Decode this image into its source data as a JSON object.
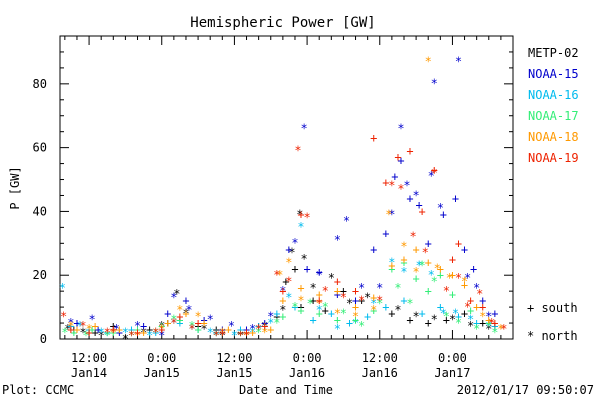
{
  "chart_data": {
    "type": "scatter",
    "title": "Hemispheric Power [GW]",
    "ylabel": "P [GW]",
    "xlabel": "Date and Time",
    "ylim": [
      0,
      95
    ],
    "yticks": [
      0,
      20,
      40,
      60,
      80
    ],
    "yminor_step": 5,
    "x_unit": "hours since 2012-01-14 00:00",
    "xlim": [
      7.2,
      82
    ],
    "xticks": [
      {
        "x": 12,
        "line1": "12:00",
        "line2": "Jan14"
      },
      {
        "x": 24,
        "line1": "0:00",
        "line2": "Jan15"
      },
      {
        "x": 36,
        "line1": "12:00",
        "line2": "Jan15"
      },
      {
        "x": 48,
        "line1": "0:00",
        "line2": "Jan16"
      },
      {
        "x": 60,
        "line1": "12:00",
        "line2": "Jan16"
      },
      {
        "x": 72,
        "line1": "0:00",
        "line2": "Jan17"
      }
    ],
    "xminor_step": 2,
    "legend_position": "right",
    "marker_legend": [
      {
        "glyph": "+",
        "label": "south"
      },
      {
        "glyph": "*",
        "label": "north"
      }
    ],
    "series": [
      {
        "name": "METP-02",
        "color": "#000000",
        "south": [
          [
            9.5,
            3
          ],
          [
            13,
            2
          ],
          [
            16,
            4
          ],
          [
            20,
            2
          ],
          [
            22,
            3
          ],
          [
            25,
            5
          ],
          [
            27,
            6
          ],
          [
            30,
            4
          ],
          [
            33,
            3
          ],
          [
            37,
            2
          ],
          [
            40,
            4
          ],
          [
            43,
            7
          ],
          [
            44.5,
            18
          ],
          [
            46,
            22
          ],
          [
            47,
            10
          ],
          [
            49,
            12
          ],
          [
            51,
            9
          ],
          [
            54,
            15
          ],
          [
            57,
            12
          ],
          [
            62,
            8
          ],
          [
            65,
            6
          ],
          [
            68,
            5
          ],
          [
            71,
            6
          ],
          [
            74,
            8
          ],
          [
            77,
            5
          ],
          [
            79,
            4
          ]
        ],
        "north": [
          [
            8.5,
            4
          ],
          [
            11,
            3
          ],
          [
            14,
            2
          ],
          [
            18,
            1
          ],
          [
            21,
            3
          ],
          [
            24,
            5
          ],
          [
            26.5,
            15
          ],
          [
            28,
            9
          ],
          [
            31,
            4
          ],
          [
            34,
            2
          ],
          [
            38,
            2
          ],
          [
            41,
            5
          ],
          [
            44,
            10
          ],
          [
            45.5,
            28
          ],
          [
            46.8,
            40
          ],
          [
            47.5,
            26
          ],
          [
            49,
            17
          ],
          [
            52,
            20
          ],
          [
            55,
            12
          ],
          [
            58,
            14
          ],
          [
            63,
            10
          ],
          [
            66,
            8
          ],
          [
            69,
            7
          ],
          [
            72,
            7
          ],
          [
            75,
            5
          ],
          [
            78,
            4
          ]
        ]
      },
      {
        "name": "NOAA-15",
        "color": "#0000cc",
        "south": [
          [
            10,
            5
          ],
          [
            13.5,
            3
          ],
          [
            17,
            2
          ],
          [
            21,
            4
          ],
          [
            25,
            8
          ],
          [
            28,
            12
          ],
          [
            31,
            6
          ],
          [
            34,
            3
          ],
          [
            38,
            3
          ],
          [
            41,
            5
          ],
          [
            45,
            28
          ],
          [
            48,
            22
          ],
          [
            50,
            21
          ],
          [
            53,
            14
          ],
          [
            56,
            12
          ],
          [
            59,
            28
          ],
          [
            61,
            33
          ],
          [
            62.5,
            51
          ],
          [
            63.5,
            56
          ],
          [
            65,
            44
          ],
          [
            66.5,
            42
          ],
          [
            68,
            30
          ],
          [
            70.5,
            39
          ],
          [
            72.5,
            44
          ],
          [
            74,
            28
          ],
          [
            75.5,
            22
          ],
          [
            77,
            12
          ],
          [
            79,
            8
          ]
        ],
        "north": [
          [
            9,
            6
          ],
          [
            12.5,
            7
          ],
          [
            16.5,
            4
          ],
          [
            20,
            5
          ],
          [
            24,
            2
          ],
          [
            26,
            14
          ],
          [
            28.5,
            10
          ],
          [
            32,
            7
          ],
          [
            35.5,
            5
          ],
          [
            39,
            4
          ],
          [
            42,
            8
          ],
          [
            44,
            16
          ],
          [
            46,
            31
          ],
          [
            47.5,
            67
          ],
          [
            50,
            21
          ],
          [
            53,
            32
          ],
          [
            54.5,
            38
          ],
          [
            57,
            17
          ],
          [
            60,
            17
          ],
          [
            62,
            40
          ],
          [
            63.5,
            67
          ],
          [
            64.5,
            49
          ],
          [
            66,
            46
          ],
          [
            68.5,
            52
          ],
          [
            69,
            81
          ],
          [
            70,
            42
          ],
          [
            73,
            88
          ],
          [
            74.5,
            20
          ],
          [
            76,
            17
          ],
          [
            78,
            8
          ]
        ]
      },
      {
        "name": "NOAA-16",
        "color": "#00bbee",
        "south": [
          [
            9,
            4
          ],
          [
            12,
            3
          ],
          [
            15,
            2
          ],
          [
            19,
            3
          ],
          [
            23,
            2
          ],
          [
            27,
            5
          ],
          [
            30,
            3
          ],
          [
            33,
            2
          ],
          [
            37,
            3
          ],
          [
            40,
            4
          ],
          [
            43,
            8
          ],
          [
            46,
            10
          ],
          [
            49,
            6
          ],
          [
            52,
            8
          ],
          [
            55,
            5
          ],
          [
            58,
            7
          ],
          [
            61,
            10
          ],
          [
            64,
            12
          ],
          [
            67,
            8
          ],
          [
            70,
            10
          ],
          [
            73,
            7
          ],
          [
            76,
            5
          ],
          [
            79,
            4
          ]
        ],
        "north": [
          [
            7.6,
            17
          ],
          [
            10.5,
            5
          ],
          [
            14,
            3
          ],
          [
            18,
            3
          ],
          [
            22,
            2
          ],
          [
            26,
            6
          ],
          [
            29,
            4
          ],
          [
            32,
            3
          ],
          [
            36,
            2
          ],
          [
            39,
            3
          ],
          [
            42,
            6
          ],
          [
            45,
            14
          ],
          [
            47,
            36
          ],
          [
            50,
            10
          ],
          [
            53,
            4
          ],
          [
            56,
            6
          ],
          [
            59,
            12
          ],
          [
            62,
            25
          ],
          [
            64,
            22
          ],
          [
            66.5,
            24
          ],
          [
            68.5,
            21
          ],
          [
            70.5,
            9
          ],
          [
            72.5,
            9
          ],
          [
            75,
            7
          ],
          [
            78,
            5
          ]
        ]
      },
      {
        "name": "NOAA-17",
        "color": "#33ee77",
        "south": [
          [
            9.5,
            2
          ],
          [
            12.5,
            3
          ],
          [
            16,
            2
          ],
          [
            20,
            3
          ],
          [
            24,
            4
          ],
          [
            27,
            6
          ],
          [
            30,
            3
          ],
          [
            34,
            2
          ],
          [
            38,
            2
          ],
          [
            41,
            4
          ],
          [
            44,
            7
          ],
          [
            47,
            9
          ],
          [
            50,
            8
          ],
          [
            53,
            6
          ],
          [
            56,
            6
          ],
          [
            59,
            9
          ],
          [
            62,
            22
          ],
          [
            64,
            24
          ],
          [
            66,
            19
          ],
          [
            68,
            15
          ],
          [
            70,
            20
          ],
          [
            72,
            14
          ],
          [
            75,
            9
          ],
          [
            78,
            5
          ]
        ],
        "north": [
          [
            8,
            3
          ],
          [
            11.5,
            2
          ],
          [
            15,
            2
          ],
          [
            19,
            2
          ],
          [
            23,
            3
          ],
          [
            26,
            7
          ],
          [
            29,
            5
          ],
          [
            33,
            2
          ],
          [
            37,
            2
          ],
          [
            40,
            3
          ],
          [
            43,
            6
          ],
          [
            46,
            11
          ],
          [
            48.5,
            12
          ],
          [
            51,
            11
          ],
          [
            54,
            9
          ],
          [
            57,
            5
          ],
          [
            60,
            12
          ],
          [
            63,
            17
          ],
          [
            65,
            12
          ],
          [
            67,
            24
          ],
          [
            69,
            19
          ],
          [
            71,
            8
          ],
          [
            73,
            6
          ],
          [
            76,
            4
          ],
          [
            79,
            3
          ]
        ]
      },
      {
        "name": "NOAA-18",
        "color": "#ff9900",
        "south": [
          [
            10,
            3
          ],
          [
            13,
            4
          ],
          [
            17,
            3
          ],
          [
            21,
            2
          ],
          [
            25,
            5
          ],
          [
            28,
            8
          ],
          [
            31,
            5
          ],
          [
            35,
            3
          ],
          [
            39,
            2
          ],
          [
            42,
            3
          ],
          [
            44,
            12
          ],
          [
            47,
            16
          ],
          [
            50,
            14
          ],
          [
            53,
            15
          ],
          [
            56,
            10
          ],
          [
            59,
            13
          ],
          [
            62,
            23
          ],
          [
            64,
            25
          ],
          [
            66,
            28
          ],
          [
            68,
            24
          ],
          [
            70,
            22
          ],
          [
            72,
            20
          ],
          [
            74,
            17
          ],
          [
            76,
            10
          ],
          [
            78,
            6
          ]
        ],
        "north": [
          [
            9,
            5
          ],
          [
            12,
            4
          ],
          [
            16,
            3
          ],
          [
            20,
            2
          ],
          [
            24,
            4
          ],
          [
            27,
            10
          ],
          [
            30,
            8
          ],
          [
            34,
            3
          ],
          [
            38,
            2
          ],
          [
            41,
            3
          ],
          [
            43.5,
            21
          ],
          [
            45,
            25
          ],
          [
            47,
            13
          ],
          [
            50,
            12
          ],
          [
            53,
            9
          ],
          [
            56,
            8
          ],
          [
            59,
            10
          ],
          [
            61.5,
            40
          ],
          [
            64,
            30
          ],
          [
            66,
            22
          ],
          [
            68,
            88
          ],
          [
            69.5,
            23
          ],
          [
            71.5,
            20
          ],
          [
            74,
            19
          ],
          [
            77,
            8
          ],
          [
            80,
            4
          ]
        ]
      },
      {
        "name": "NOAA-19",
        "color": "#ee2200",
        "south": [
          [
            9,
            3
          ],
          [
            12,
            2
          ],
          [
            16,
            3
          ],
          [
            20,
            2
          ],
          [
            24,
            3
          ],
          [
            27,
            7
          ],
          [
            30,
            5
          ],
          [
            34,
            2
          ],
          [
            38,
            2
          ],
          [
            41,
            4
          ],
          [
            44,
            15
          ],
          [
            47,
            39
          ],
          [
            50,
            12
          ],
          [
            53,
            18
          ],
          [
            56,
            15
          ],
          [
            59,
            63
          ],
          [
            61,
            49
          ],
          [
            63,
            57
          ],
          [
            65,
            59
          ],
          [
            67,
            40
          ],
          [
            69,
            53
          ],
          [
            72,
            25
          ],
          [
            73,
            30
          ],
          [
            75,
            12
          ],
          [
            77,
            10
          ],
          [
            79,
            5
          ]
        ],
        "north": [
          [
            7.8,
            8
          ],
          [
            11,
            5
          ],
          [
            15,
            3
          ],
          [
            19,
            2
          ],
          [
            23,
            3
          ],
          [
            26,
            6
          ],
          [
            29,
            4
          ],
          [
            33,
            2
          ],
          [
            37,
            2
          ],
          [
            40,
            4
          ],
          [
            43,
            21
          ],
          [
            45,
            19
          ],
          [
            46.5,
            60
          ],
          [
            48,
            39
          ],
          [
            51,
            16
          ],
          [
            54,
            14
          ],
          [
            57,
            13
          ],
          [
            60,
            13
          ],
          [
            62,
            49
          ],
          [
            63.5,
            48
          ],
          [
            65.5,
            33
          ],
          [
            67.5,
            28
          ],
          [
            69,
            53
          ],
          [
            71,
            16
          ],
          [
            73,
            20
          ],
          [
            74.5,
            11
          ],
          [
            76.5,
            15
          ],
          [
            78.5,
            6
          ],
          [
            80.5,
            4
          ]
        ]
      }
    ]
  },
  "footer": {
    "left": "Plot: CCMC",
    "right": "2012/01/17 09:50:07"
  }
}
